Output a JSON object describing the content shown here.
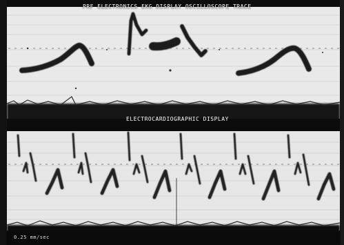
{
  "top_panel": {
    "caption": "PRF ELECTRONICS EKG DISPLAY OSCILLOSCOPE TRACE",
    "ink_color": "#1e1e1e",
    "grid_color": "#b9b9b9"
  },
  "bottom_panel": {
    "caption": "ELECTROCARDIOGRAPHIC DISPLAY",
    "ink_color": "#232323",
    "grid_color": "#bdbdbd"
  },
  "footer": {
    "note": "0.25 mm/sec"
  },
  "colors": {
    "paper": "#ececec",
    "noise_band": "#0c0c0c",
    "border": "#0a0a0a"
  }
}
